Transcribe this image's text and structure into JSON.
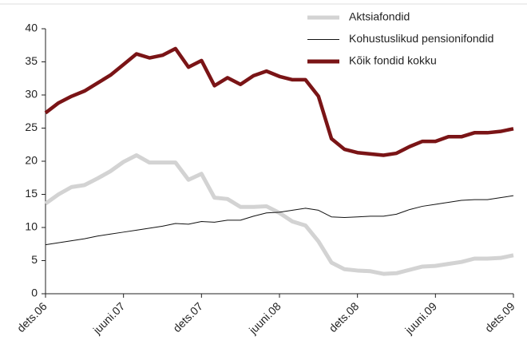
{
  "chart_data": {
    "type": "line",
    "categories": [
      "dets.06",
      null,
      null,
      null,
      null,
      null,
      "juuni.07",
      null,
      null,
      null,
      null,
      null,
      "dets.07",
      null,
      null,
      null,
      null,
      null,
      "juuni.08",
      null,
      null,
      null,
      null,
      null,
      "dets.08",
      null,
      null,
      null,
      null,
      null,
      "juuni.09",
      null,
      null,
      null,
      null,
      null,
      "dets.09"
    ],
    "series": [
      {
        "name": "Aktsiafondid",
        "color": "#d3d3d3",
        "values": [
          13.6,
          15,
          16.1,
          16.4,
          17.4,
          18.5,
          19.9,
          20.9,
          19.8,
          19.8,
          19.8,
          17.2,
          18.1,
          14.5,
          14.3,
          13.1,
          13.1,
          13.2,
          12.2,
          10.9,
          10.3,
          7.9,
          4.7,
          3.7,
          3.5,
          3.4,
          3.0,
          3.1,
          3.6,
          4.1,
          4.2,
          4.5,
          4.8,
          5.3,
          5.3,
          5.4,
          5.8
        ]
      },
      {
        "name": "Kohustuslikud pensionifondid",
        "color": "#111111",
        "values": [
          7.4,
          7.7,
          8.0,
          8.3,
          8.7,
          9.0,
          9.3,
          9.6,
          9.9,
          10.2,
          10.6,
          10.5,
          10.9,
          10.8,
          11.1,
          11.1,
          11.7,
          12.2,
          12.3,
          12.6,
          12.9,
          12.6,
          11.6,
          11.5,
          11.6,
          11.7,
          11.7,
          12.0,
          12.7,
          13.2,
          13.5,
          13.8,
          14.1,
          14.2,
          14.2,
          14.5,
          14.8
        ]
      },
      {
        "name": "Kõik fondid kokku",
        "color": "#7a1416",
        "values": [
          27.3,
          28.8,
          29.8,
          30.6,
          31.8,
          33,
          34.6,
          36.2,
          35.6,
          36,
          37,
          34.2,
          35.2,
          31.4,
          32.6,
          31.6,
          32.9,
          33.6,
          32.8,
          32.3,
          32.3,
          29.8,
          23.4,
          21.8,
          21.3,
          21.1,
          20.9,
          21.2,
          22.2,
          23,
          23,
          23.7,
          23.7,
          24.3,
          24.3,
          24.5,
          24.9
        ]
      }
    ],
    "ylim": [
      0,
      40
    ],
    "yticks": [
      0,
      5,
      10,
      15,
      20,
      25,
      30,
      35,
      40
    ],
    "grid": false,
    "legend": "upper right"
  }
}
